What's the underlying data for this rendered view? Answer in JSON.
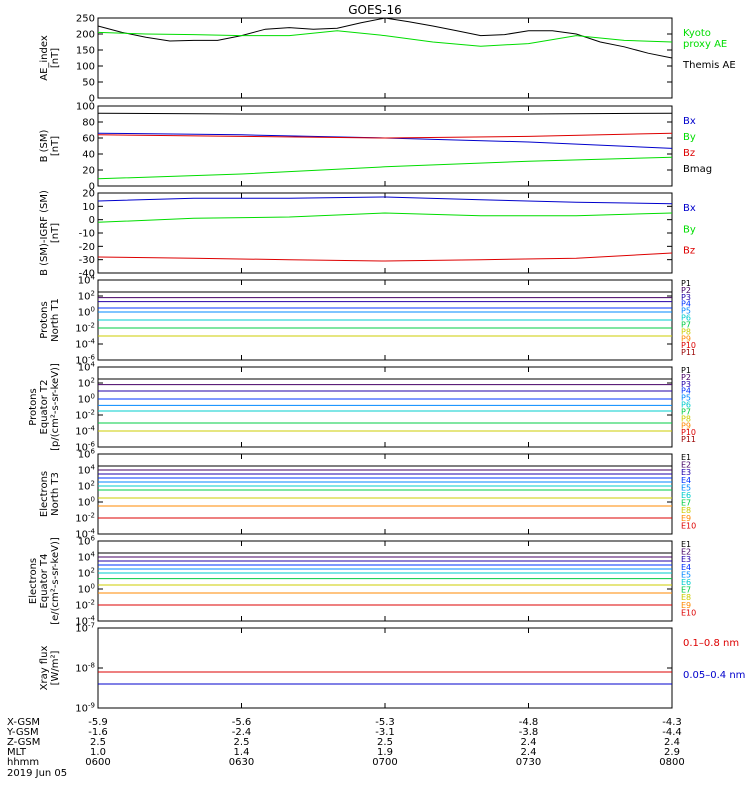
{
  "title": "GOES-16",
  "date": "2019 Jun 05",
  "x_axis": {
    "row_labels": [
      "X-GSM",
      "Y-GSM",
      "Z-GSM",
      "MLT",
      "hhmm"
    ],
    "ticks": [
      {
        "vals": [
          "-5.9",
          "-1.6",
          "2.5",
          "1.0",
          "0600"
        ]
      },
      {
        "vals": [
          "-5.6",
          "-2.4",
          "2.5",
          "1.4",
          "0630"
        ]
      },
      {
        "vals": [
          "-5.3",
          "-3.1",
          "2.5",
          "1.9",
          "0700"
        ]
      },
      {
        "vals": [
          "-4.8",
          "-3.8",
          "2.4",
          "2.4",
          "0730"
        ]
      },
      {
        "vals": [
          "-4.3",
          "-4.4",
          "2.4",
          "2.9",
          "0800"
        ]
      }
    ]
  },
  "colors": {
    "black": "#000000",
    "green": "#00dd00",
    "blue": "#0000cc",
    "red": "#dd0000",
    "P": [
      "#000000",
      "#440066",
      "#2200aa",
      "#0033ff",
      "#0088ff",
      "#00cccc",
      "#00cc44",
      "#cccc00",
      "#ff8800",
      "#dd0000",
      "#990000"
    ],
    "E": [
      "#000000",
      "#440066",
      "#2200aa",
      "#0033ff",
      "#0088ff",
      "#00cccc",
      "#00cc44",
      "#cccc00",
      "#ff8800",
      "#dd0000",
      "#990000"
    ]
  },
  "chart_data": [
    {
      "type": "line",
      "ylabel": "AE_index\n[nT]",
      "ylim": [
        0,
        250
      ],
      "yscale": "linear",
      "yticks": [
        "0",
        "50",
        "100",
        "150",
        "200",
        "250"
      ],
      "legend": [
        {
          "text": "Kyoto\nproxy AE",
          "color": "#00dd00"
        },
        {
          "text": "Themis AE",
          "color": "#000000"
        }
      ],
      "series": [
        {
          "name": "Themis AE",
          "color": "#000000",
          "x": [
            0,
            5,
            10,
            15,
            20,
            25,
            30,
            35,
            40,
            45,
            50,
            55,
            60,
            65,
            70,
            75,
            80,
            85,
            90,
            95,
            100,
            105,
            110,
            115,
            120
          ],
          "y": [
            225,
            205,
            190,
            178,
            180,
            180,
            195,
            215,
            220,
            215,
            218,
            235,
            250,
            238,
            225,
            210,
            195,
            198,
            210,
            210,
            200,
            175,
            160,
            140,
            125
          ]
        },
        {
          "name": "Kyoto proxy AE",
          "color": "#00dd00",
          "x": [
            0,
            10,
            20,
            30,
            40,
            50,
            60,
            70,
            80,
            90,
            100,
            110,
            120
          ],
          "y": [
            205,
            200,
            198,
            195,
            195,
            210,
            195,
            175,
            162,
            170,
            195,
            180,
            175
          ]
        }
      ]
    },
    {
      "type": "line",
      "ylabel": "B (SM)\n[nT]",
      "ylim": [
        0,
        100
      ],
      "yscale": "linear",
      "yticks": [
        "0",
        "20",
        "40",
        "60",
        "80",
        "100"
      ],
      "legend": [
        {
          "text": "Bx",
          "color": "#0000cc"
        },
        {
          "text": "By",
          "color": "#00dd00"
        },
        {
          "text": "Bz",
          "color": "#dd0000"
        },
        {
          "text": "Bmag",
          "color": "#000000"
        }
      ],
      "series": [
        {
          "name": "Bmag",
          "color": "#000000",
          "x": [
            0,
            30,
            60,
            90,
            120
          ],
          "y": [
            91,
            90,
            90,
            90,
            91
          ]
        },
        {
          "name": "Bx",
          "color": "#0000cc",
          "x": [
            0,
            30,
            60,
            90,
            120
          ],
          "y": [
            66,
            64,
            60,
            55,
            47
          ]
        },
        {
          "name": "Bz",
          "color": "#dd0000",
          "x": [
            0,
            30,
            60,
            90,
            120
          ],
          "y": [
            64,
            62,
            60,
            62,
            66
          ]
        },
        {
          "name": "By",
          "color": "#00dd00",
          "x": [
            0,
            30,
            60,
            90,
            120
          ],
          "y": [
            9,
            15,
            24,
            31,
            36
          ]
        }
      ]
    },
    {
      "type": "line",
      "ylabel": "B (SM)-IGRF (SM)\n[nT]",
      "ylim": [
        -40,
        20
      ],
      "yscale": "linear",
      "yticks": [
        "-40",
        "-30",
        "-20",
        "-10",
        "0",
        "10",
        "20"
      ],
      "legend": [
        {
          "text": "Bx",
          "color": "#0000cc"
        },
        {
          "text": "By",
          "color": "#00dd00"
        },
        {
          "text": "Bz",
          "color": "#dd0000"
        }
      ],
      "series": [
        {
          "name": "Bx",
          "color": "#0000cc",
          "x": [
            0,
            20,
            40,
            60,
            80,
            100,
            120
          ],
          "y": [
            14,
            16,
            16,
            17,
            15,
            13,
            12
          ]
        },
        {
          "name": "By",
          "color": "#00dd00",
          "x": [
            0,
            20,
            40,
            60,
            80,
            100,
            120
          ],
          "y": [
            -2,
            1,
            2,
            5,
            3,
            3,
            5
          ]
        },
        {
          "name": "Bz",
          "color": "#dd0000",
          "x": [
            0,
            20,
            40,
            60,
            80,
            100,
            120
          ],
          "y": [
            -28,
            -29,
            -30,
            -31,
            -30,
            -29,
            -25
          ]
        }
      ]
    },
    {
      "type": "line",
      "ylabel": "Protons\nNorth T1",
      "ylim": [
        -6,
        4
      ],
      "yscale": "log",
      "yticks": [
        "10^-6",
        "10^-4",
        "10^-2",
        "10^0",
        "10^2",
        "10^4"
      ],
      "legend_small": [
        "P1",
        "P2",
        "P3",
        "P4",
        "P5",
        "P6",
        "P7",
        "P8",
        "P9",
        "P10",
        "P11"
      ],
      "legend_colors": "P",
      "series": [
        {
          "name": "P1",
          "color": "#000000",
          "y": [
            2.5,
            2.5
          ]
        },
        {
          "name": "P2",
          "color": "#440066",
          "y": [
            1.8,
            1.8
          ]
        },
        {
          "name": "P3",
          "color": "#2200aa",
          "y": [
            1.3,
            1.3
          ]
        },
        {
          "name": "P4",
          "color": "#0033ff",
          "y": [
            0.5,
            0.5
          ]
        },
        {
          "name": "P5",
          "color": "#0088ff",
          "y": [
            0,
            0
          ]
        },
        {
          "name": "P6",
          "color": "#00cccc",
          "y": [
            -1,
            -1
          ]
        },
        {
          "name": "P7",
          "color": "#00cc44",
          "y": [
            -2,
            -2
          ]
        },
        {
          "name": "P8",
          "color": "#cccc00",
          "y": [
            -3,
            -3
          ]
        }
      ]
    },
    {
      "type": "line",
      "ylabel": "Protons\nEquator T2\n[p/(cm²-s-sr-keV)]",
      "ylim": [
        -6,
        4
      ],
      "yscale": "log",
      "yticks": [
        "10^-6",
        "10^-4",
        "10^-2",
        "10^0",
        "10^2",
        "10^4"
      ],
      "legend_small": [
        "P1",
        "P2",
        "P3",
        "P4",
        "P5",
        "P6",
        "P7",
        "P8",
        "P9",
        "P10",
        "P11"
      ],
      "legend_colors": "P",
      "series": [
        {
          "name": "P1",
          "color": "#000000",
          "y": [
            2.5,
            2.5
          ]
        },
        {
          "name": "P2",
          "color": "#440066",
          "y": [
            1.8,
            1.8
          ]
        },
        {
          "name": "P3",
          "color": "#2200aa",
          "y": [
            1,
            1
          ]
        },
        {
          "name": "P4",
          "color": "#0033ff",
          "y": [
            0,
            0
          ]
        },
        {
          "name": "P5",
          "color": "#0088ff",
          "y": [
            -0.8,
            -0.8
          ]
        },
        {
          "name": "P6",
          "color": "#00cccc",
          "y": [
            -1.5,
            -1.5
          ]
        },
        {
          "name": "P7",
          "color": "#00cc44",
          "y": [
            -3,
            -3
          ]
        },
        {
          "name": "P8",
          "color": "#cccc00",
          "y": [
            -4,
            -4
          ]
        }
      ]
    },
    {
      "type": "line",
      "ylabel": "Electrons\nNorth T3",
      "ylim": [
        -4,
        6
      ],
      "yscale": "log",
      "yticks": [
        "10^-4",
        "10^-2",
        "10^0",
        "10^2",
        "10^4",
        "10^6"
      ],
      "legend_small": [
        "E1",
        "E2",
        "E3",
        "E4",
        "E5",
        "E6",
        "E7",
        "E8",
        "E9",
        "E10"
      ],
      "legend_colors": "E",
      "series": [
        {
          "name": "E1",
          "color": "#000000",
          "y": [
            4.5,
            4.5
          ]
        },
        {
          "name": "E2",
          "color": "#440066",
          "y": [
            4,
            4
          ]
        },
        {
          "name": "E3",
          "color": "#2200aa",
          "y": [
            3.5,
            3.5
          ]
        },
        {
          "name": "E4",
          "color": "#0033ff",
          "y": [
            3,
            3
          ]
        },
        {
          "name": "E5",
          "color": "#0088ff",
          "y": [
            2.5,
            2.5
          ]
        },
        {
          "name": "E6",
          "color": "#00cccc",
          "y": [
            2,
            2
          ]
        },
        {
          "name": "E7",
          "color": "#00cc44",
          "y": [
            1.5,
            1.5
          ]
        },
        {
          "name": "E8",
          "color": "#cccc00",
          "y": [
            0.5,
            0.5
          ]
        },
        {
          "name": "E9",
          "color": "#ff8800",
          "y": [
            -0.5,
            -0.5
          ]
        },
        {
          "name": "E10",
          "color": "#dd0000",
          "y": [
            -2,
            -2
          ]
        }
      ]
    },
    {
      "type": "line",
      "ylabel": "Electrons\nEquator T4\n[e/(cm²-s-sr-keV)]",
      "ylim": [
        -4,
        6
      ],
      "yscale": "log",
      "yticks": [
        "10^-4",
        "10^-2",
        "10^0",
        "10^2",
        "10^4",
        "10^6"
      ],
      "legend_small": [
        "E1",
        "E2",
        "E3",
        "E4",
        "E5",
        "E6",
        "E7",
        "E8",
        "E9",
        "E10"
      ],
      "legend_colors": "E",
      "series": [
        {
          "name": "E1",
          "color": "#000000",
          "y": [
            4.5,
            4.5
          ]
        },
        {
          "name": "E2",
          "color": "#440066",
          "y": [
            4,
            4
          ]
        },
        {
          "name": "E3",
          "color": "#2200aa",
          "y": [
            3.5,
            3.5
          ]
        },
        {
          "name": "E4",
          "color": "#0033ff",
          "y": [
            3,
            3
          ]
        },
        {
          "name": "E5",
          "color": "#0088ff",
          "y": [
            2.5,
            2.5
          ]
        },
        {
          "name": "E6",
          "color": "#00cccc",
          "y": [
            2,
            2
          ]
        },
        {
          "name": "E7",
          "color": "#00cc44",
          "y": [
            1.3,
            1.3
          ]
        },
        {
          "name": "E8",
          "color": "#cccc00",
          "y": [
            0.5,
            0.5
          ]
        },
        {
          "name": "E9",
          "color": "#ff8800",
          "y": [
            -0.5,
            -0.5
          ]
        },
        {
          "name": "E10",
          "color": "#dd0000",
          "y": [
            -2,
            -2
          ]
        }
      ]
    },
    {
      "type": "line",
      "ylabel": "Xray flux\n[W/m²]",
      "ylim": [
        -9,
        -7
      ],
      "yscale": "log",
      "yticks": [
        "10^-9",
        "10^-8",
        "10^-7"
      ],
      "legend": [
        {
          "text": "0.1–0.8 nm",
          "color": "#dd0000"
        },
        {
          "text": "0.05–0.4 nm",
          "color": "#0000cc"
        }
      ],
      "series": [
        {
          "name": "0.1–0.8 nm",
          "color": "#dd0000",
          "y": [
            -8.1,
            -8.1
          ]
        },
        {
          "name": "0.05–0.4 nm",
          "color": "#0000cc",
          "y": [
            -8.4,
            -8.4
          ]
        }
      ]
    }
  ]
}
